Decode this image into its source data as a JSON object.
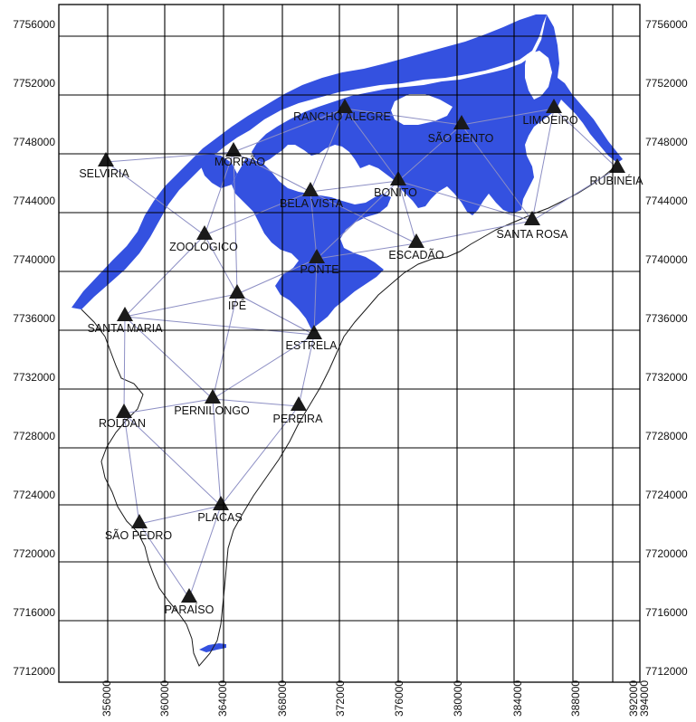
{
  "map": {
    "colors": {
      "water": "#3451e0",
      "network": "#8d8fc4",
      "grid": "#000000",
      "station": "#1a1a1a",
      "background": "#ffffff"
    },
    "axis": {
      "y_labels": [
        "7756000",
        "7752000",
        "7748000",
        "7744000",
        "7740000",
        "7736000",
        "7732000",
        "7728000",
        "7724000",
        "7720000",
        "7716000",
        "7712000"
      ],
      "x_labels": [
        "356000",
        "360000",
        "364000",
        "368000",
        "372000",
        "376000",
        "380000",
        "384000",
        "388000",
        "392000",
        "394000"
      ],
      "label_orientation": "x labels rotated vertical"
    },
    "stations": [
      {
        "id": "rancho-alegre",
        "label": "RANCHO ALEGRE"
      },
      {
        "id": "limoeiro",
        "label": "LIMOEIRO"
      },
      {
        "id": "sao-bento",
        "label": "SÃO BENTO"
      },
      {
        "id": "selviria",
        "label": "SELVIRIA"
      },
      {
        "id": "morrao",
        "label": "MORRÃO"
      },
      {
        "id": "rubineia",
        "label": "RUBINÉIA"
      },
      {
        "id": "bonito",
        "label": "BONITO"
      },
      {
        "id": "bela-vista",
        "label": "BELA VISTA"
      },
      {
        "id": "santa-rosa",
        "label": "SANTA ROSA"
      },
      {
        "id": "zoologico",
        "label": "ZOOLÓGICO"
      },
      {
        "id": "escadao",
        "label": "ESCADÃO"
      },
      {
        "id": "ponte",
        "label": "PONTE"
      },
      {
        "id": "ipe",
        "label": "IPÊ"
      },
      {
        "id": "santa-maria",
        "label": "SANTA MARIA"
      },
      {
        "id": "estrela",
        "label": "ESTRELA"
      },
      {
        "id": "pernilongo",
        "label": "PERNILONGO"
      },
      {
        "id": "pereira",
        "label": "PEREIRA"
      },
      {
        "id": "roldan",
        "label": "ROLDAN"
      },
      {
        "id": "placas",
        "label": "PLACAS"
      },
      {
        "id": "sao-pedro",
        "label": "SÃO PEDRO"
      },
      {
        "id": "paraiso",
        "label": "PARAÍSO"
      }
    ],
    "network_links": [
      [
        "selviria",
        "morrao"
      ],
      [
        "morrao",
        "rancho-alegre"
      ],
      [
        "rancho-alegre",
        "sao-bento"
      ],
      [
        "sao-bento",
        "limoeiro"
      ],
      [
        "limoeiro",
        "rubineia"
      ],
      [
        "limoeiro",
        "santa-rosa"
      ],
      [
        "rubineia",
        "santa-rosa"
      ],
      [
        "sao-bento",
        "santa-rosa"
      ],
      [
        "bonito",
        "sao-bento"
      ],
      [
        "bonito",
        "santa-rosa"
      ],
      [
        "bonito",
        "escadao"
      ],
      [
        "bonito",
        "rancho-alegre"
      ],
      [
        "bonito",
        "bela-vista"
      ],
      [
        "bonito",
        "ponte"
      ],
      [
        "rancho-alegre",
        "bela-vista"
      ],
      [
        "morrao",
        "bela-vista"
      ],
      [
        "morrao",
        "zoologico"
      ],
      [
        "morrao",
        "ipe"
      ],
      [
        "selviria",
        "zoologico"
      ],
      [
        "zoologico",
        "bela-vista"
      ],
      [
        "zoologico",
        "santa-maria"
      ],
      [
        "zoologico",
        "ipe"
      ],
      [
        "bela-vista",
        "ponte"
      ],
      [
        "bela-vista",
        "escadao"
      ],
      [
        "escadao",
        "ponte"
      ],
      [
        "escadao",
        "santa-rosa"
      ],
      [
        "ponte",
        "ipe"
      ],
      [
        "ponte",
        "estrela"
      ],
      [
        "ipe",
        "santa-maria"
      ],
      [
        "ipe",
        "estrela"
      ],
      [
        "ipe",
        "pernilongo"
      ],
      [
        "santa-maria",
        "pernilongo"
      ],
      [
        "santa-maria",
        "roldan"
      ],
      [
        "santa-maria",
        "estrela"
      ],
      [
        "estrela",
        "pernilongo"
      ],
      [
        "estrela",
        "pereira"
      ],
      [
        "pernilongo",
        "pereira"
      ],
      [
        "pernilongo",
        "roldan"
      ],
      [
        "pernilongo",
        "placas"
      ],
      [
        "pereira",
        "placas"
      ],
      [
        "roldan",
        "placas"
      ],
      [
        "roldan",
        "sao-pedro"
      ],
      [
        "sao-pedro",
        "placas"
      ],
      [
        "placas",
        "paraiso"
      ],
      [
        "sao-pedro",
        "paraiso"
      ]
    ]
  }
}
